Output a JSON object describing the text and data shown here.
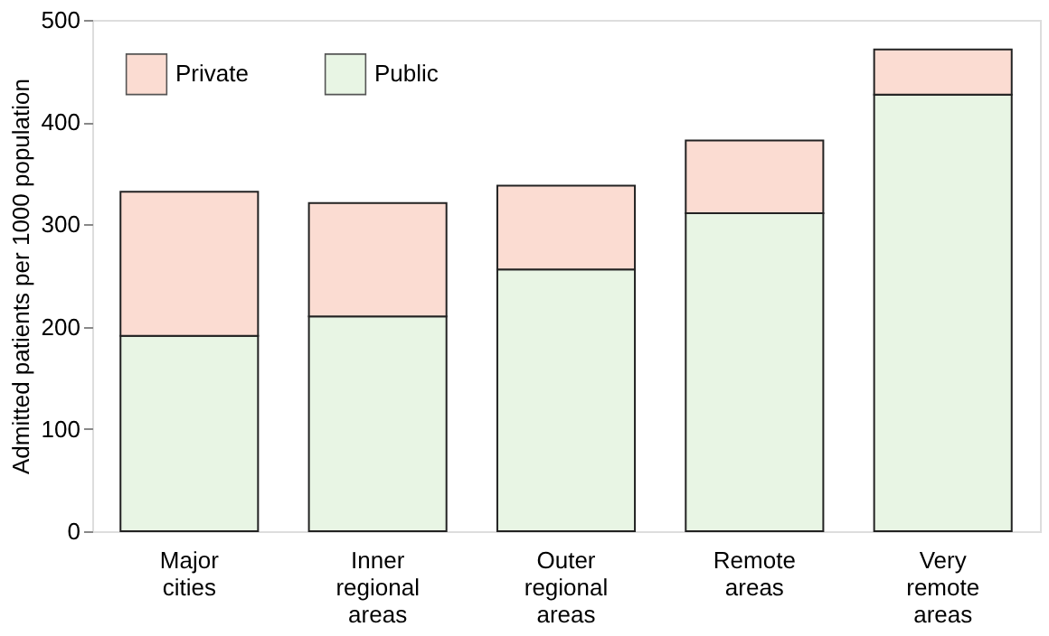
{
  "chart_data": {
    "type": "bar",
    "stacked": true,
    "ylabel": "Admitted patients per 1000 population",
    "categories": [
      "Major cities",
      "Inner regional areas",
      "Outer regional areas",
      "Remote areas",
      "Very remote areas"
    ],
    "series": [
      {
        "name": "Public",
        "color": "#e8f5e4",
        "values": [
          191,
          210,
          256,
          311,
          427
        ]
      },
      {
        "name": "Private",
        "color": "#fbdcd2",
        "values": [
          141,
          111,
          82,
          71,
          44
        ]
      }
    ],
    "ylim": [
      0,
      500
    ],
    "yticks": [
      0,
      100,
      200,
      300,
      400,
      500
    ],
    "grid": false,
    "legend": "top left"
  }
}
